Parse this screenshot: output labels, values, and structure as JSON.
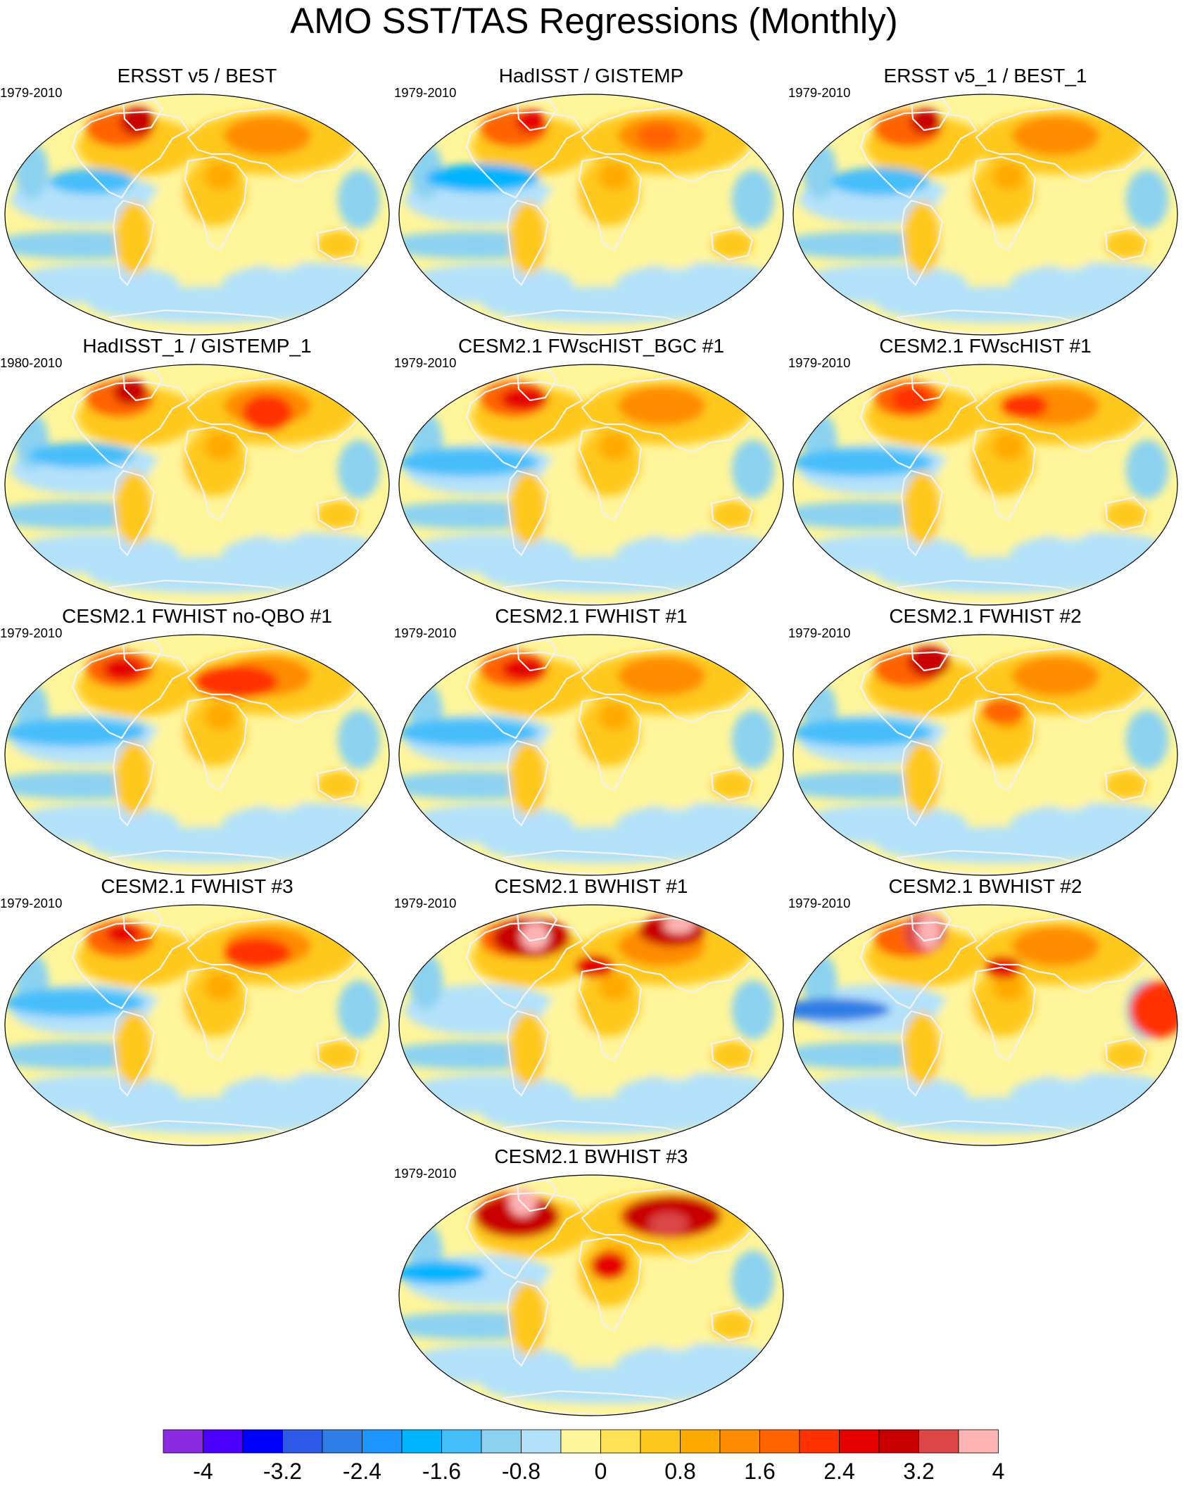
{
  "title": "AMO SST/TAS Regressions (Monthly)",
  "panels": [
    {
      "title": "ERSST v5 / BEST",
      "period": "1979-2010"
    },
    {
      "title": "HadISST / GISTEMP",
      "period": "1979-2010"
    },
    {
      "title": "ERSST v5_1 / BEST_1",
      "period": "1979-2010"
    },
    {
      "title": "HadISST_1 / GISTEMP_1",
      "period": "1980-2010"
    },
    {
      "title": "CESM2.1 FWscHIST_BGC #1",
      "period": "1979-2010"
    },
    {
      "title": "CESM2.1 FWscHIST #1",
      "period": "1979-2010"
    },
    {
      "title": "CESM2.1 FWHIST no-QBO #1",
      "period": "1979-2010"
    },
    {
      "title": "CESM2.1 FWHIST #1",
      "period": "1979-2010"
    },
    {
      "title": "CESM2.1 FWHIST #2",
      "period": "1979-2010"
    },
    {
      "title": "CESM2.1 FWHIST #3",
      "period": "1979-2010"
    },
    {
      "title": "CESM2.1 BWHIST #1",
      "period": "1979-2010"
    },
    {
      "title": "CESM2.1 BWHIST #2",
      "period": "1979-2010"
    },
    {
      "title": "CESM2.1 BWHIST #3",
      "period": "1979-2010"
    }
  ],
  "colorbar": {
    "labels": [
      "-4",
      "-3.2",
      "-2.4",
      "-1.6",
      "-0.8",
      "0",
      "0.8",
      "1.6",
      "2.4",
      "3.2",
      "4"
    ],
    "colors": [
      "#8a2be2",
      "#4b00ff",
      "#0000ff",
      "#2d5ae6",
      "#2f7de6",
      "#1e96ff",
      "#00b4ff",
      "#46befa",
      "#8cd2f0",
      "#b4e1fa",
      "#fff59b",
      "#ffe155",
      "#ffc81e",
      "#ffaa00",
      "#ff8c00",
      "#ff6400",
      "#ff3200",
      "#e60000",
      "#c80000",
      "#dc4646",
      "#ffb4b4"
    ]
  }
}
